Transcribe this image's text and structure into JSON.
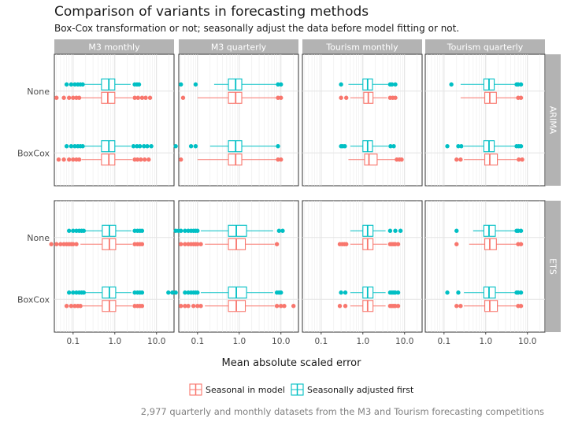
{
  "chart_data": {
    "type": "boxplot",
    "title": "Comparison of variants in forecasting methods",
    "subtitle": "Box-Cox transformation or not; seasonally adjust the data before model fitting or not.",
    "caption": "2,977 quarterly and monthly datasets from the M3 and Tourism forecasting competitions",
    "xlabel": "Mean absolute scaled error",
    "x_scale": "log10",
    "x_ticks": [
      "0.1",
      "1.0",
      "10.0"
    ],
    "columns": [
      "M3 monthly",
      "M3 quarterly",
      "Tourism monthly",
      "Tourism quarterly"
    ],
    "rows": [
      "ARIMA",
      "ETS"
    ],
    "y_categories": [
      "None",
      "BoxCox"
    ],
    "legend": {
      "position": "bottom",
      "items": [
        {
          "label": "Seasonal in model",
          "color": "#f8766d"
        },
        {
          "label": "Seasonally adjusted first",
          "color": "#00bfc4"
        }
      ]
    },
    "colors": {
      "seasonal": "#f8766d",
      "adjusted": "#00bfc4",
      "strip": "#b3b3b3"
    },
    "panels": [
      {
        "row": "ARIMA",
        "column": "M3 monthly",
        "boxes": [
          {
            "y": "None",
            "series": "adjusted",
            "wlo": 0.18,
            "q1": 0.48,
            "median": 0.72,
            "q3": 1.0,
            "whi": 2.4,
            "outliers": [
              0.07,
              0.09,
              0.11,
              0.13,
              0.15,
              0.17,
              3.0,
              3.4,
              3.8
            ]
          },
          {
            "y": "None",
            "series": "seasonal",
            "wlo": 0.15,
            "q1": 0.48,
            "median": 0.68,
            "q3": 1.0,
            "whi": 2.6,
            "outliers": [
              0.04,
              0.06,
              0.08,
              0.1,
              0.12,
              0.14,
              3.0,
              3.6,
              4.5,
              5.5,
              7.0
            ]
          },
          {
            "y": "BoxCox",
            "series": "adjusted",
            "wlo": 0.18,
            "q1": 0.48,
            "median": 0.72,
            "q3": 1.0,
            "whi": 2.4,
            "outliers": [
              0.07,
              0.09,
              0.11,
              0.13,
              0.15,
              0.17,
              2.8,
              3.4,
              4.0,
              5.0,
              6.0,
              7.5
            ]
          },
          {
            "y": "BoxCox",
            "series": "seasonal",
            "wlo": 0.16,
            "q1": 0.48,
            "median": 0.72,
            "q3": 1.0,
            "whi": 2.6,
            "outliers": [
              0.045,
              0.06,
              0.08,
              0.1,
              0.12,
              0.14,
              3.0,
              3.5,
              4.2,
              5.2,
              6.5
            ]
          }
        ]
      },
      {
        "row": "ARIMA",
        "column": "M3 quarterly",
        "boxes": [
          {
            "y": "None",
            "series": "adjusted",
            "wlo": 0.25,
            "q1": 0.55,
            "median": 0.82,
            "q3": 1.15,
            "whi": 8.0,
            "outliers": [
              0.04,
              0.09,
              8.5,
              10.0
            ]
          },
          {
            "y": "None",
            "series": "seasonal",
            "wlo": 0.1,
            "q1": 0.55,
            "median": 0.82,
            "q3": 1.15,
            "whi": 8.0,
            "outliers": [
              0.045,
              8.5,
              10.0
            ]
          },
          {
            "y": "BoxCox",
            "series": "adjusted",
            "wlo": 0.2,
            "q1": 0.55,
            "median": 0.82,
            "q3": 1.15,
            "whi": 8.0,
            "outliers": [
              0.03,
              0.07,
              0.09,
              8.5
            ]
          },
          {
            "y": "BoxCox",
            "series": "seasonal",
            "wlo": 0.1,
            "q1": 0.55,
            "median": 0.82,
            "q3": 1.15,
            "whi": 8.0,
            "outliers": [
              0.04,
              8.5,
              10.0
            ]
          }
        ]
      },
      {
        "row": "ARIMA",
        "column": "Tourism monthly",
        "boxes": [
          {
            "y": "None",
            "series": "adjusted",
            "wlo": 0.45,
            "q1": 1.0,
            "median": 1.3,
            "q3": 1.7,
            "whi": 4.0,
            "outliers": [
              0.3,
              4.5,
              5.0,
              6.0
            ]
          },
          {
            "y": "None",
            "series": "seasonal",
            "wlo": 0.5,
            "q1": 1.05,
            "median": 1.35,
            "q3": 1.75,
            "whi": 3.8,
            "outliers": [
              0.3,
              0.4,
              4.5,
              5.2,
              6.0
            ]
          },
          {
            "y": "BoxCox",
            "series": "adjusted",
            "wlo": 0.5,
            "q1": 1.0,
            "median": 1.3,
            "q3": 1.7,
            "whi": 4.0,
            "outliers": [
              0.3,
              0.33,
              0.37,
              4.6,
              5.5
            ]
          },
          {
            "y": "BoxCox",
            "series": "seasonal",
            "wlo": 0.45,
            "q1": 1.1,
            "median": 1.4,
            "q3": 2.2,
            "whi": 6.0,
            "outliers": [
              6.5,
              7.5,
              8.5
            ]
          }
        ]
      },
      {
        "row": "ARIMA",
        "column": "Tourism quarterly",
        "boxes": [
          {
            "y": "None",
            "series": "adjusted",
            "wlo": 0.25,
            "q1": 0.9,
            "median": 1.2,
            "q3": 1.6,
            "whi": 5.0,
            "outliers": [
              0.15,
              5.5,
              6.0,
              7.0
            ]
          },
          {
            "y": "None",
            "series": "seasonal",
            "wlo": 0.25,
            "q1": 0.95,
            "median": 1.25,
            "q3": 1.8,
            "whi": 5.5,
            "outliers": [
              6.0,
              7.0
            ]
          },
          {
            "y": "BoxCox",
            "series": "adjusted",
            "wlo": 0.3,
            "q1": 0.9,
            "median": 1.2,
            "q3": 1.6,
            "whi": 5.0,
            "outliers": [
              0.12,
              0.22,
              0.26,
              5.5,
              6.2,
              7.0
            ]
          },
          {
            "y": "BoxCox",
            "series": "seasonal",
            "wlo": 0.3,
            "q1": 0.95,
            "median": 1.25,
            "q3": 1.9,
            "whi": 5.5,
            "outliers": [
              0.2,
              0.25,
              6.2,
              7.5
            ]
          }
        ]
      },
      {
        "row": "ETS",
        "column": "M3 monthly",
        "boxes": [
          {
            "y": "None",
            "series": "adjusted",
            "wlo": 0.2,
            "q1": 0.5,
            "median": 0.74,
            "q3": 1.05,
            "whi": 2.5,
            "outliers": [
              0.08,
              0.1,
              0.12,
              0.14,
              0.16,
              0.18,
              3.0,
              3.5,
              4.0,
              4.5
            ]
          },
          {
            "y": "None",
            "series": "seasonal",
            "wlo": 0.15,
            "q1": 0.5,
            "median": 0.74,
            "q3": 1.05,
            "whi": 2.6,
            "outliers": [
              0.03,
              0.04,
              0.05,
              0.06,
              0.07,
              0.08,
              0.09,
              0.1,
              0.12,
              3.0,
              3.5,
              4.0,
              4.5
            ]
          },
          {
            "y": "BoxCox",
            "series": "adjusted",
            "wlo": 0.2,
            "q1": 0.5,
            "median": 0.74,
            "q3": 1.05,
            "whi": 2.5,
            "outliers": [
              0.08,
              0.1,
              0.12,
              0.14,
              0.16,
              0.18,
              3.0,
              3.5,
              4.0,
              4.5
            ]
          },
          {
            "y": "BoxCox",
            "series": "seasonal",
            "wlo": 0.17,
            "q1": 0.5,
            "median": 0.74,
            "q3": 1.05,
            "whi": 2.6,
            "outliers": [
              0.07,
              0.09,
              0.11,
              0.13,
              0.15,
              3.0,
              3.5,
              4.0,
              4.5
            ]
          }
        ]
      },
      {
        "row": "ETS",
        "column": "M3 quarterly",
        "boxes": [
          {
            "y": "None",
            "series": "adjusted",
            "wlo": 0.12,
            "q1": 0.55,
            "median": 0.85,
            "q3": 1.5,
            "whi": 6.5,
            "outliers": [
              0.03,
              0.035,
              0.04,
              0.05,
              0.06,
              0.07,
              0.08,
              0.09,
              0.1,
              9.0,
              11.0
            ]
          },
          {
            "y": "None",
            "series": "seasonal",
            "wlo": 0.15,
            "q1": 0.55,
            "median": 0.85,
            "q3": 1.4,
            "whi": 7.0,
            "outliers": [
              0.04,
              0.05,
              0.06,
              0.07,
              0.08,
              0.09,
              0.1,
              0.12,
              8.0
            ]
          },
          {
            "y": "BoxCox",
            "series": "adjusted",
            "wlo": 0.12,
            "q1": 0.55,
            "median": 0.85,
            "q3": 1.5,
            "whi": 6.5,
            "outliers": [
              0.02,
              0.025,
              0.03,
              0.05,
              0.06,
              0.07,
              0.08,
              0.09,
              0.1,
              8.0,
              9.0,
              10.0
            ]
          },
          {
            "y": "BoxCox",
            "series": "seasonal",
            "wlo": 0.15,
            "q1": 0.55,
            "median": 0.85,
            "q3": 1.4,
            "whi": 7.0,
            "outliers": [
              0.04,
              0.05,
              0.06,
              0.08,
              0.1,
              0.12,
              8.0,
              10.0,
              12.0,
              20.0
            ]
          }
        ]
      },
      {
        "row": "ETS",
        "column": "Tourism monthly",
        "boxes": [
          {
            "y": "None",
            "series": "adjusted",
            "wlo": 0.5,
            "q1": 1.0,
            "median": 1.3,
            "q3": 1.75,
            "whi": 3.5,
            "outliers": [
              4.5,
              6.0,
              8.0
            ]
          },
          {
            "y": "None",
            "series": "seasonal",
            "wlo": 0.5,
            "q1": 1.0,
            "median": 1.3,
            "q3": 1.75,
            "whi": 3.8,
            "outliers": [
              0.28,
              0.32,
              0.36,
              0.4,
              4.5,
              5.0,
              5.5,
              6.0,
              7.0
            ]
          },
          {
            "y": "BoxCox",
            "series": "adjusted",
            "wlo": 0.5,
            "q1": 1.0,
            "median": 1.3,
            "q3": 1.75,
            "whi": 3.5,
            "outliers": [
              0.3,
              0.38,
              4.5,
              5.0,
              5.5,
              6.0,
              7.0
            ]
          },
          {
            "y": "BoxCox",
            "series": "seasonal",
            "wlo": 0.5,
            "q1": 1.0,
            "median": 1.3,
            "q3": 1.75,
            "whi": 3.5,
            "outliers": [
              0.28,
              0.38,
              4.5,
              5.0,
              5.5,
              6.0,
              7.0
            ]
          }
        ]
      },
      {
        "row": "ETS",
        "column": "Tourism quarterly",
        "boxes": [
          {
            "y": "None",
            "series": "adjusted",
            "wlo": 0.5,
            "q1": 0.9,
            "median": 1.2,
            "q3": 1.7,
            "whi": 5.0,
            "outliers": [
              0.2,
              5.5,
              6.0,
              7.0
            ]
          },
          {
            "y": "None",
            "series": "seasonal",
            "wlo": 0.4,
            "q1": 0.95,
            "median": 1.25,
            "q3": 1.8,
            "whi": 5.5,
            "outliers": [
              0.2,
              6.0,
              7.0
            ]
          },
          {
            "y": "BoxCox",
            "series": "adjusted",
            "wlo": 0.3,
            "q1": 0.9,
            "median": 1.2,
            "q3": 1.7,
            "whi": 5.0,
            "outliers": [
              0.12,
              0.22,
              5.5,
              6.0,
              7.0
            ]
          },
          {
            "y": "BoxCox",
            "series": "seasonal",
            "wlo": 0.3,
            "q1": 0.95,
            "median": 1.25,
            "q3": 1.9,
            "whi": 5.5,
            "outliers": [
              0.2,
              0.25,
              6.0,
              7.0
            ]
          }
        ]
      }
    ]
  }
}
